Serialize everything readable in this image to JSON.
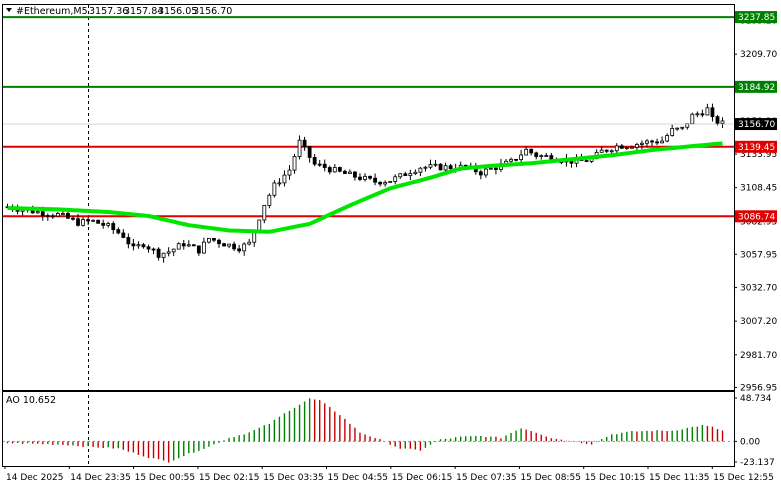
{
  "header": {
    "symbol": "#Ethereum,M5",
    "open": "3157.36",
    "high": "3157.84",
    "low": "3156.05",
    "close": "3156.70"
  },
  "indicator": {
    "name": "AO 10.652",
    "y_ticks": [
      "48.734",
      "0.00",
      "-23.137"
    ]
  },
  "colors": {
    "candle": "#000000",
    "ma_line": "#00e600",
    "support_resistance_green": "#008000",
    "support_resistance_red": "#e00000",
    "ao_up": "#008000",
    "ao_down": "#c00000",
    "price_tag_bg": "#000000"
  },
  "chart_data": {
    "type": "candlestick",
    "y_ticks": [
      "3235.20",
      "3209.70",
      "3184.20",
      "3159.20",
      "3133.95",
      "3108.45",
      "3082.95",
      "3057.95",
      "3032.70",
      "3007.20",
      "2981.70",
      "2956.95"
    ],
    "x_ticks": [
      "14 Dec 2025",
      "14 Dec 23:35",
      "15 Dec 00:55",
      "15 Dec 02:15",
      "15 Dec 03:35",
      "15 Dec 04:55",
      "15 Dec 06:15",
      "15 Dec 07:35",
      "15 Dec 08:55",
      "15 Dec 10:15",
      "15 Dec 11:35",
      "15 Dec 12:55"
    ],
    "ylim": [
      2955,
      3247
    ],
    "levels": [
      {
        "label": "3237.85",
        "value": 3237.85,
        "color": "green"
      },
      {
        "label": "3184.92",
        "value": 3184.92,
        "color": "green"
      },
      {
        "label": "3139.45",
        "value": 3139.45,
        "color": "red"
      },
      {
        "label": "3086.74",
        "value": 3086.74,
        "color": "red"
      }
    ],
    "current_price": {
      "label": "3156.70",
      "value": 3156.7
    },
    "close_path": [
      [
        0,
        3094
      ],
      [
        6,
        3090
      ],
      [
        10,
        3088
      ],
      [
        14,
        3082
      ],
      [
        17,
        3083
      ],
      [
        20,
        3079
      ],
      [
        23,
        3072
      ],
      [
        25,
        3062
      ],
      [
        27,
        3066
      ],
      [
        30,
        3058
      ],
      [
        32,
        3060
      ],
      [
        35,
        3066
      ],
      [
        38,
        3061
      ],
      [
        40,
        3070
      ],
      [
        43,
        3066
      ],
      [
        46,
        3063
      ],
      [
        48,
        3066
      ],
      [
        51,
        3096
      ],
      [
        53,
        3110
      ],
      [
        56,
        3122
      ],
      [
        58,
        3143
      ],
      [
        61,
        3126
      ],
      [
        63,
        3124
      ],
      [
        66,
        3120
      ],
      [
        70,
        3116
      ],
      [
        73,
        3113
      ],
      [
        76,
        3114
      ],
      [
        78,
        3117
      ],
      [
        80,
        3121
      ],
      [
        82,
        3124
      ],
      [
        85,
        3124
      ],
      [
        88,
        3124
      ],
      [
        91,
        3124
      ],
      [
        94,
        3120
      ],
      [
        97,
        3124
      ],
      [
        100,
        3128
      ],
      [
        103,
        3137
      ],
      [
        105,
        3133
      ],
      [
        107,
        3132
      ],
      [
        110,
        3130
      ],
      [
        113,
        3128
      ],
      [
        116,
        3130
      ],
      [
        118,
        3136
      ],
      [
        121,
        3140
      ],
      [
        124,
        3141
      ],
      [
        127,
        3143
      ],
      [
        130,
        3144
      ],
      [
        132,
        3152
      ],
      [
        134,
        3153
      ],
      [
        136,
        3163
      ],
      [
        138,
        3166
      ],
      [
        139,
        3168
      ],
      [
        140,
        3160
      ],
      [
        142,
        3157
      ]
    ],
    "ma": [
      [
        0,
        3093
      ],
      [
        10,
        3092
      ],
      [
        20,
        3090
      ],
      [
        28,
        3087
      ],
      [
        36,
        3080
      ],
      [
        44,
        3076
      ],
      [
        52,
        3075
      ],
      [
        60,
        3081
      ],
      [
        68,
        3095
      ],
      [
        76,
        3108
      ],
      [
        84,
        3116
      ],
      [
        90,
        3123
      ],
      [
        96,
        3125
      ],
      [
        104,
        3127
      ],
      [
        112,
        3130
      ],
      [
        120,
        3133
      ],
      [
        128,
        3137
      ],
      [
        136,
        3140
      ],
      [
        142,
        3142
      ]
    ],
    "ao": [
      [
        0,
        -2
      ],
      [
        8,
        -3
      ],
      [
        12,
        -4
      ],
      [
        16,
        -6
      ],
      [
        22,
        -8
      ],
      [
        28,
        -18
      ],
      [
        32,
        -23
      ],
      [
        36,
        -14
      ],
      [
        40,
        -6
      ],
      [
        44,
        4
      ],
      [
        48,
        10
      ],
      [
        52,
        20
      ],
      [
        56,
        35
      ],
      [
        60,
        48
      ],
      [
        62,
        46
      ],
      [
        66,
        30
      ],
      [
        70,
        10
      ],
      [
        74,
        2
      ],
      [
        78,
        -8
      ],
      [
        82,
        -10
      ],
      [
        86,
        2
      ],
      [
        90,
        5
      ],
      [
        94,
        6
      ],
      [
        98,
        4
      ],
      [
        102,
        15
      ],
      [
        104,
        12
      ],
      [
        108,
        4
      ],
      [
        112,
        0
      ],
      [
        116,
        -3
      ],
      [
        120,
        8
      ],
      [
        124,
        11
      ],
      [
        128,
        12
      ],
      [
        132,
        12
      ],
      [
        136,
        16
      ],
      [
        138,
        18
      ],
      [
        140,
        16
      ],
      [
        142,
        12
      ]
    ],
    "ao_ylim": [
      -23.137,
      48.734
    ]
  }
}
